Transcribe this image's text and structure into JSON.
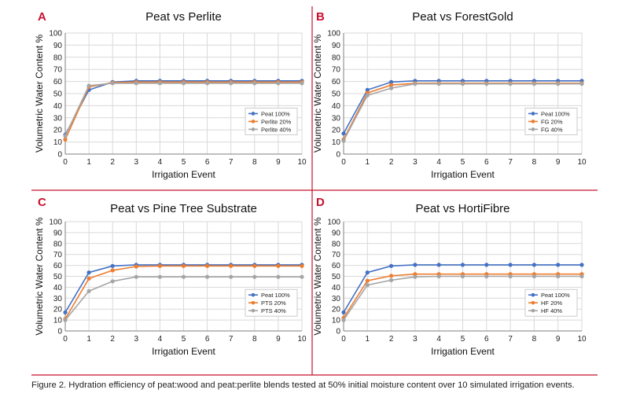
{
  "caption": "Figure 2. Hydration efficiency of peat:wood and peat:perlite blends tested at 50% initial moisture content over 10 simulated irrigation events.",
  "colors": {
    "divider": "#c8102e",
    "panel_letter": "#c8102e",
    "grid": "#d9d9d9",
    "axis": "#7f7f7f",
    "legend_border": "#bfbfbf"
  },
  "chart_data": [
    {
      "type": "line",
      "panel": "A",
      "title": "Peat vs Perlite",
      "xlabel": "Irrigation Event",
      "ylabel": "Volumetric Water Content %",
      "x": [
        0,
        1,
        2,
        3,
        4,
        5,
        6,
        7,
        8,
        9,
        10
      ],
      "xlim": [
        0,
        10
      ],
      "ylim": [
        0,
        100
      ],
      "xticks": [
        "0",
        "1",
        "2",
        "3",
        "4",
        "5",
        "6",
        "7",
        "8",
        "9",
        "10"
      ],
      "yticks": [
        "0",
        "10",
        "20",
        "30",
        "40",
        "50",
        "60",
        "70",
        "80",
        "90",
        "100"
      ],
      "grid": true,
      "legend_position": "right",
      "series": [
        {
          "name": "Peat 100%",
          "color": "#4472c4",
          "values": [
            16,
            53,
            59.5,
            60.5,
            60.5,
            60.5,
            60.5,
            60.5,
            60.5,
            60.5,
            60.5
          ]
        },
        {
          "name": "Perlite 20%",
          "color": "#ed7d31",
          "values": [
            12,
            55.5,
            59,
            59.5,
            59.5,
            59.5,
            59.5,
            59.5,
            59.5,
            59.5,
            59.5
          ]
        },
        {
          "name": "Perlite 40%",
          "color": "#a5a5a5",
          "values": [
            15,
            56.5,
            58.5,
            58.5,
            58.5,
            58.5,
            58.5,
            58.5,
            58.5,
            58.5,
            58.5
          ]
        }
      ]
    },
    {
      "type": "line",
      "panel": "B",
      "title": "Peat vs ForestGold",
      "xlabel": "Irrigation Event",
      "ylabel": "Volumetric Water Content %",
      "x": [
        0,
        1,
        2,
        3,
        4,
        5,
        6,
        7,
        8,
        9,
        10
      ],
      "xlim": [
        0,
        10
      ],
      "ylim": [
        0,
        100
      ],
      "xticks": [
        "0",
        "1",
        "2",
        "3",
        "4",
        "5",
        "6",
        "7",
        "8",
        "9",
        "10"
      ],
      "yticks": [
        "0",
        "10",
        "20",
        "30",
        "40",
        "50",
        "60",
        "70",
        "80",
        "90",
        "100"
      ],
      "grid": true,
      "legend_position": "right",
      "series": [
        {
          "name": "Peat 100%",
          "color": "#4472c4",
          "values": [
            17,
            53,
            59.5,
            60.5,
            60.5,
            60.5,
            60.5,
            60.5,
            60.5,
            60.5,
            60.5
          ]
        },
        {
          "name": "FG 20%",
          "color": "#ed7d31",
          "values": [
            12,
            50.5,
            57,
            58.5,
            58.5,
            58.5,
            58.5,
            58.5,
            58.5,
            58.5,
            58.5
          ]
        },
        {
          "name": "FG 40%",
          "color": "#a5a5a5",
          "values": [
            11,
            48.5,
            54.5,
            58,
            58,
            58,
            58,
            58,
            58,
            58,
            58
          ]
        }
      ]
    },
    {
      "type": "line",
      "panel": "C",
      "title": "Peat vs Pine Tree Substrate",
      "xlabel": "Irrigation Event",
      "ylabel": "Volumetric Water Content %",
      "x": [
        0,
        1,
        2,
        3,
        4,
        5,
        6,
        7,
        8,
        9,
        10
      ],
      "xlim": [
        0,
        10
      ],
      "ylim": [
        0,
        100
      ],
      "xticks": [
        "0",
        "1",
        "2",
        "3",
        "4",
        "5",
        "6",
        "7",
        "8",
        "9",
        "10"
      ],
      "yticks": [
        "0",
        "10",
        "20",
        "30",
        "40",
        "50",
        "60",
        "70",
        "80",
        "90",
        "100"
      ],
      "grid": true,
      "legend_position": "right",
      "series": [
        {
          "name": "Peat 100%",
          "color": "#4472c4",
          "values": [
            17,
            53.5,
            59.5,
            60.5,
            60.5,
            60.5,
            60.5,
            60.5,
            60.5,
            60.5,
            60.5
          ]
        },
        {
          "name": "PTS 20%",
          "color": "#ed7d31",
          "values": [
            11,
            48,
            55.5,
            59,
            59.5,
            59.5,
            59.5,
            59.5,
            59.5,
            59.5,
            59.5
          ]
        },
        {
          "name": "PTS 40%",
          "color": "#a5a5a5",
          "values": [
            10,
            36.5,
            45.5,
            49.5,
            49.5,
            49.5,
            49.5,
            49.5,
            49.5,
            49.5,
            49.5
          ]
        }
      ]
    },
    {
      "type": "line",
      "panel": "D",
      "title": "Peat vs HortiFibre",
      "xlabel": "Irrigation Event",
      "ylabel": "Volumetric Water Content %",
      "x": [
        0,
        1,
        2,
        3,
        4,
        5,
        6,
        7,
        8,
        9,
        10
      ],
      "xlim": [
        0,
        10
      ],
      "ylim": [
        0,
        100
      ],
      "xticks": [
        "0",
        "1",
        "2",
        "3",
        "4",
        "5",
        "6",
        "7",
        "8",
        "9",
        "10"
      ],
      "yticks": [
        "0",
        "10",
        "20",
        "30",
        "40",
        "50",
        "60",
        "70",
        "80",
        "90",
        "100"
      ],
      "grid": true,
      "legend_position": "right",
      "series": [
        {
          "name": "Peat 100%",
          "color": "#4472c4",
          "values": [
            17,
            53.5,
            59.5,
            60.5,
            60.5,
            60.5,
            60.5,
            60.5,
            60.5,
            60.5,
            60.5
          ]
        },
        {
          "name": "HF 20%",
          "color": "#ed7d31",
          "values": [
            12,
            46,
            50.5,
            52,
            52,
            52,
            52,
            52,
            52,
            52,
            52
          ]
        },
        {
          "name": "HF 40%",
          "color": "#a5a5a5",
          "values": [
            10,
            42,
            46.5,
            49.5,
            50,
            50,
            50,
            50,
            50,
            50,
            50
          ]
        }
      ]
    }
  ]
}
